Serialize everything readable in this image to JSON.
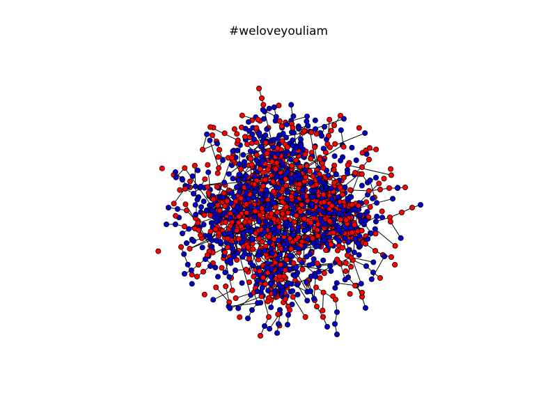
{
  "chart": {
    "title": "#weloveyouliam"
  },
  "style": {
    "node_colors": [
      "#0000cc",
      "#ff0000"
    ],
    "edge_color": "#000000",
    "node_stroke": "#000000",
    "background": "#ffffff"
  }
}
